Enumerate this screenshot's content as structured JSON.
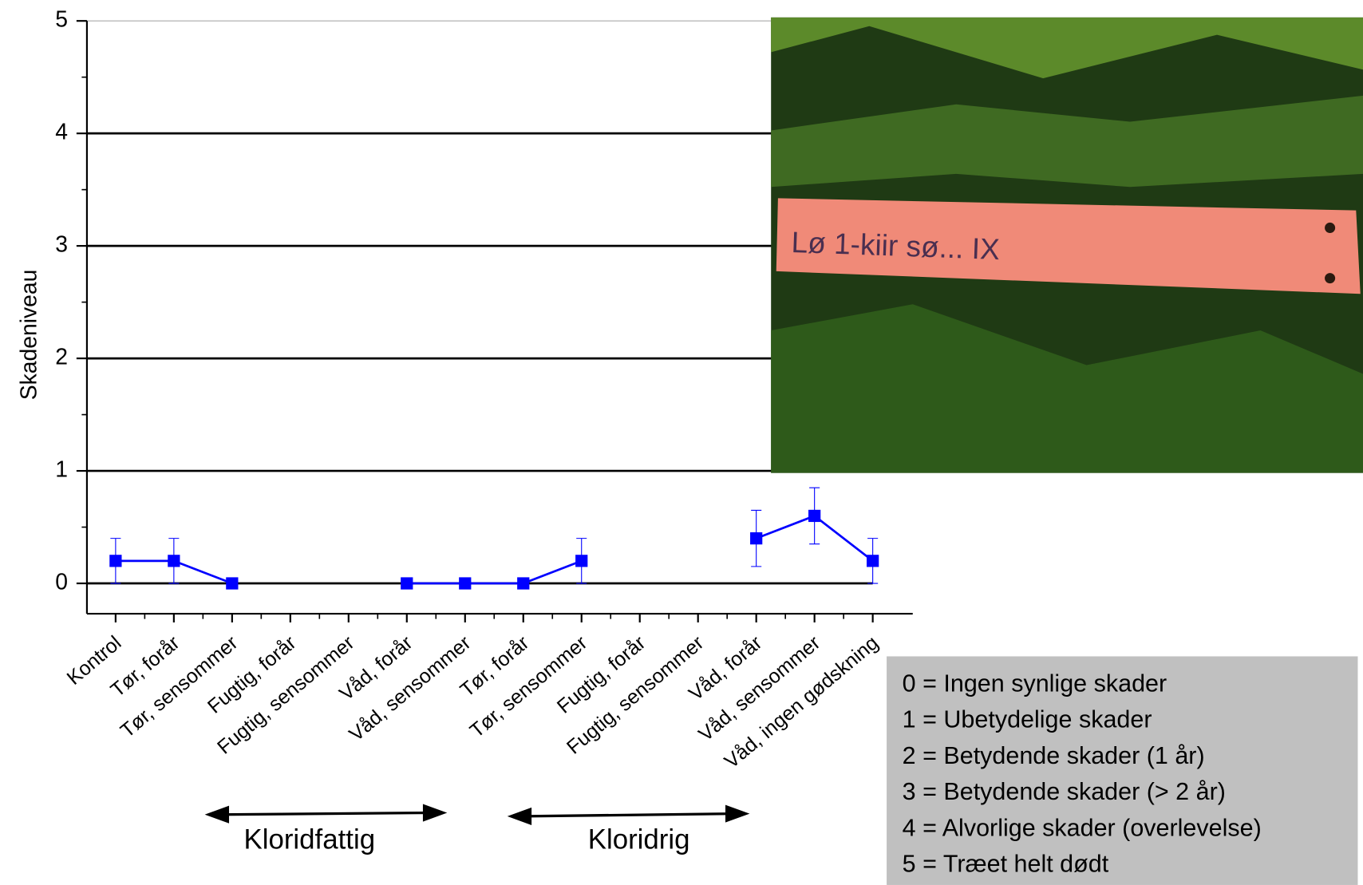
{
  "chart_data": {
    "type": "line",
    "y_label": "Skadeniveau",
    "categories": [
      "Kontrol",
      "Tør, forår",
      "Tør, sensommer",
      "Fugtig, forår",
      "Fugtig, sensommer",
      "Våd, forår",
      "Våd, sensommer",
      "Tør, forår",
      "Tør, sensommer",
      "Fugtig, forår",
      "Fugtig, sensommer",
      "Våd, forår",
      "Våd, sensommer",
      "Våd, ingen gødskning"
    ],
    "values": [
      0.2,
      0.2,
      0,
      null,
      null,
      0,
      0,
      0,
      0.2,
      null,
      null,
      0.4,
      0.6,
      0.2
    ],
    "errors": [
      0.2,
      0.2,
      0,
      null,
      null,
      0,
      0,
      0,
      0.2,
      null,
      null,
      0.25,
      0.25,
      0.2
    ],
    "color": "#0000ff",
    "ylim": [
      -0.27,
      5
    ],
    "yticks": [
      0,
      1,
      2,
      3,
      4,
      5
    ],
    "grid": true,
    "groups": [
      "Kloridfattig",
      "Kloridrig"
    ],
    "legend_notes": [
      "0 = Ingen synlige skader",
      "1 = Ubetydelige skader",
      "2 = Betydende skader (1 år)",
      "3 = Betydende skader (> 2 år)",
      "4 = Alvorlige skader (overlevelse)",
      "5 = Træet helt dødt"
    ]
  }
}
